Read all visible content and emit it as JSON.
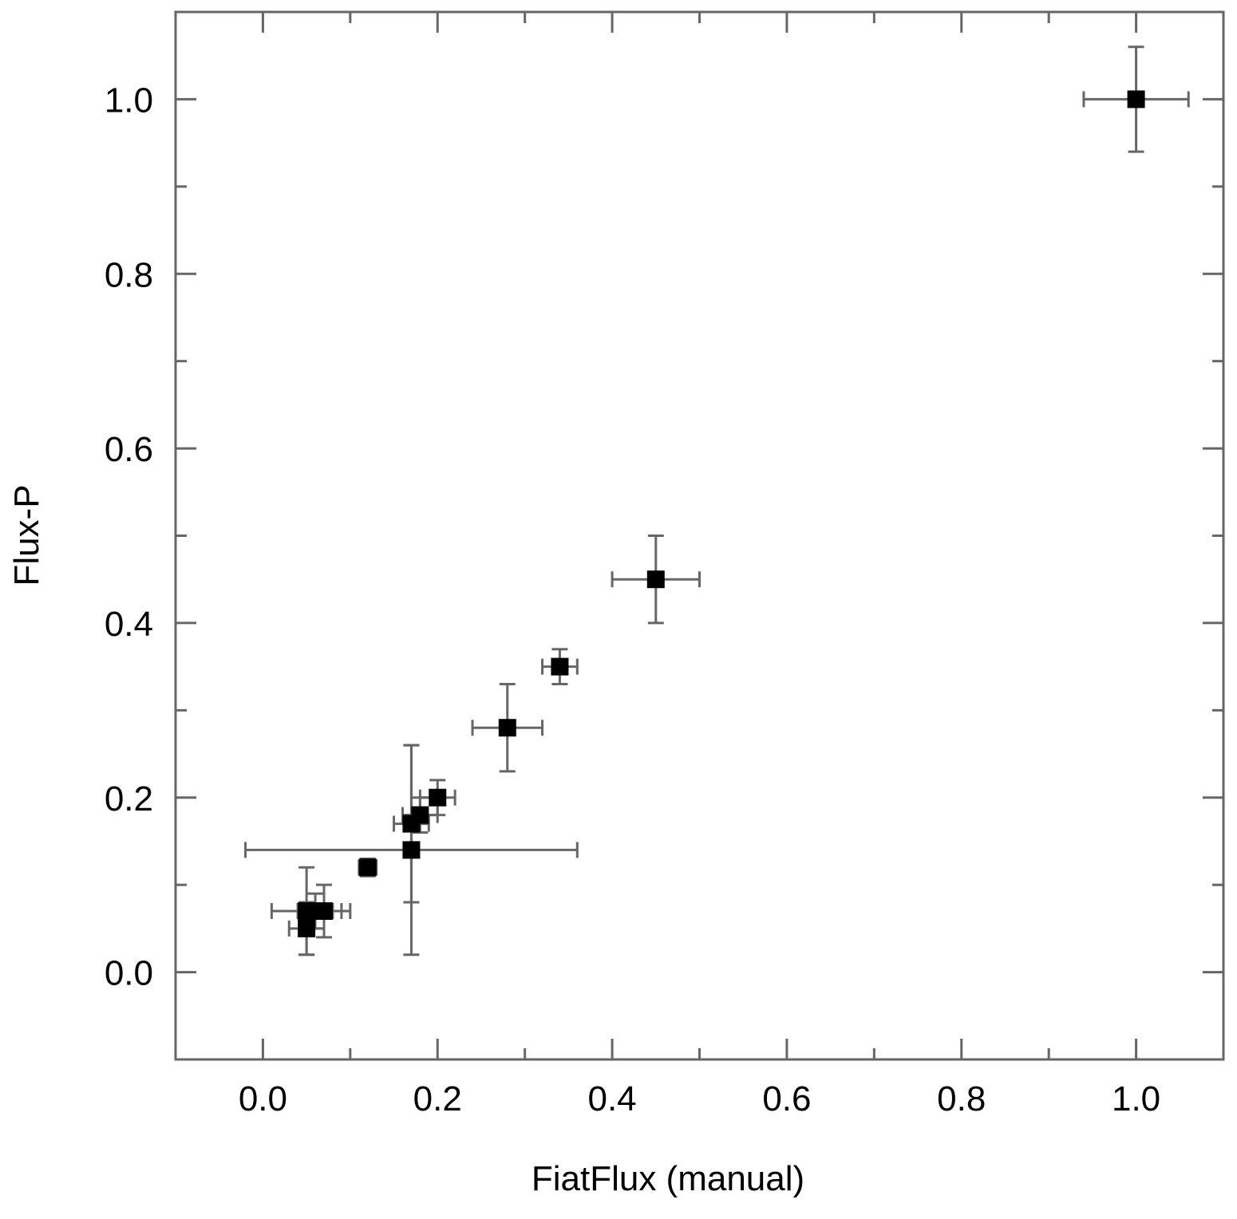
{
  "chart_data": {
    "type": "scatter",
    "xlabel": "FiatFlux (manual)",
    "ylabel": "Flux-P",
    "xlim": [
      -0.1,
      1.1
    ],
    "ylim": [
      -0.1,
      1.1
    ],
    "x_ticks": [
      "0.0",
      "0.2",
      "0.4",
      "0.6",
      "0.8",
      "1.0"
    ],
    "y_ticks": [
      "0.0",
      "0.2",
      "0.4",
      "0.6",
      "0.8",
      "1.0"
    ],
    "grid": false,
    "legend": "none",
    "marker": "square",
    "colors": {
      "marker": "#000000",
      "error_bar": "#666666",
      "axis": "#666666"
    },
    "points": [
      {
        "x": 1.0,
        "y": 1.0,
        "xerr": 0.06,
        "yerr": 0.06
      },
      {
        "x": 0.45,
        "y": 0.45,
        "xerr": 0.05,
        "yerr": 0.05
      },
      {
        "x": 0.34,
        "y": 0.35,
        "xerr": 0.02,
        "yerr": 0.02
      },
      {
        "x": 0.28,
        "y": 0.28,
        "xerr": 0.04,
        "yerr": 0.05
      },
      {
        "x": 0.2,
        "y": 0.2,
        "xerr": 0.02,
        "yerr": 0.02
      },
      {
        "x": 0.18,
        "y": 0.18,
        "xerr": 0.02,
        "yerr": 0.02
      },
      {
        "x": 0.17,
        "y": 0.17,
        "xerr": 0.02,
        "yerr": 0.09
      },
      {
        "x": 0.17,
        "y": 0.14,
        "xerr": 0.19,
        "yerr": 0.12
      },
      {
        "x": 0.12,
        "y": 0.12,
        "xerr": 0.01,
        "yerr": 0.01
      },
      {
        "x": 0.07,
        "y": 0.07,
        "xerr": 0.03,
        "yerr": 0.03
      },
      {
        "x": 0.06,
        "y": 0.07,
        "xerr": 0.02,
        "yerr": 0.02
      },
      {
        "x": 0.05,
        "y": 0.07,
        "xerr": 0.04,
        "yerr": 0.05
      },
      {
        "x": 0.05,
        "y": 0.05,
        "xerr": 0.02,
        "yerr": 0.03
      }
    ]
  }
}
